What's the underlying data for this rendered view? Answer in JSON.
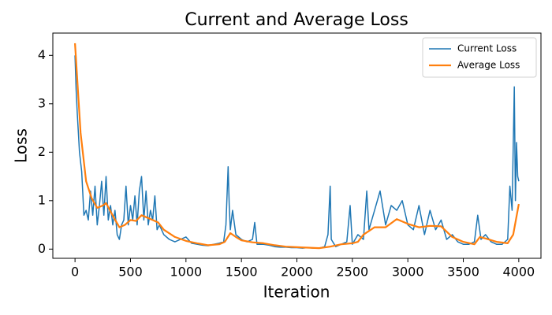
{
  "chart_data": {
    "type": "line",
    "title": "Current and Average Loss",
    "x_label": "Iteration",
    "y_label": "Loss",
    "xlim": [
      -200,
      4200
    ],
    "xticks": [
      0,
      500,
      1000,
      1500,
      2000,
      2500,
      3000,
      3500,
      4000
    ],
    "ylim": [
      -0.19,
      4.46
    ],
    "yticks": [
      0,
      1,
      2,
      3,
      4
    ],
    "grid": false,
    "legend": "upper right",
    "series": [
      {
        "name": "Current Loss",
        "color": "#1f77b4",
        "width": 1.5,
        "x": [
          0,
          10,
          20,
          40,
          60,
          80,
          100,
          120,
          140,
          160,
          180,
          200,
          220,
          240,
          260,
          280,
          300,
          320,
          340,
          360,
          380,
          400,
          420,
          440,
          460,
          480,
          500,
          520,
          540,
          560,
          580,
          600,
          620,
          640,
          660,
          680,
          700,
          720,
          740,
          760,
          800,
          850,
          900,
          950,
          1000,
          1050,
          1100,
          1150,
          1200,
          1250,
          1300,
          1340,
          1360,
          1380,
          1390,
          1400,
          1420,
          1450,
          1500,
          1550,
          1600,
          1620,
          1640,
          1700,
          1750,
          1800,
          1850,
          1900,
          1950,
          2000,
          2050,
          2100,
          2150,
          2200,
          2250,
          2280,
          2300,
          2310,
          2350,
          2400,
          2450,
          2480,
          2500,
          2550,
          2600,
          2630,
          2650,
          2700,
          2750,
          2800,
          2850,
          2900,
          2950,
          3000,
          3050,
          3100,
          3150,
          3200,
          3250,
          3300,
          3350,
          3400,
          3450,
          3500,
          3550,
          3600,
          3630,
          3660,
          3700,
          3750,
          3800,
          3850,
          3900,
          3920,
          3940,
          3960,
          3970,
          3980,
          3990,
          4000
        ],
        "values": [
          4.0,
          3.3,
          2.8,
          2.0,
          1.6,
          0.7,
          0.8,
          0.6,
          1.2,
          0.7,
          1.3,
          0.5,
          0.9,
          1.4,
          0.7,
          1.5,
          0.6,
          0.9,
          0.5,
          0.8,
          0.3,
          0.2,
          0.5,
          0.6,
          1.3,
          0.5,
          0.9,
          0.6,
          1.1,
          0.5,
          1.2,
          1.5,
          0.6,
          1.2,
          0.5,
          0.8,
          0.6,
          1.1,
          0.4,
          0.5,
          0.3,
          0.2,
          0.15,
          0.2,
          0.25,
          0.12,
          0.1,
          0.08,
          0.07,
          0.1,
          0.12,
          0.15,
          0.5,
          1.7,
          0.9,
          0.4,
          0.8,
          0.3,
          0.2,
          0.15,
          0.2,
          0.55,
          0.1,
          0.1,
          0.08,
          0.05,
          0.04,
          0.04,
          0.03,
          0.03,
          0.02,
          0.03,
          0.02,
          0.02,
          0.05,
          0.3,
          1.3,
          0.2,
          0.05,
          0.1,
          0.15,
          0.9,
          0.1,
          0.3,
          0.2,
          1.2,
          0.4,
          0.8,
          1.2,
          0.5,
          0.9,
          0.8,
          1.0,
          0.5,
          0.4,
          0.9,
          0.3,
          0.8,
          0.4,
          0.6,
          0.2,
          0.3,
          0.15,
          0.1,
          0.1,
          0.15,
          0.7,
          0.2,
          0.3,
          0.15,
          0.1,
          0.1,
          0.2,
          1.3,
          0.8,
          3.35,
          1.0,
          2.2,
          1.5,
          1.4
        ]
      },
      {
        "name": "Average Loss",
        "color": "#ff7f0e",
        "width": 2.2,
        "x": [
          0,
          50,
          100,
          150,
          200,
          250,
          280,
          350,
          400,
          450,
          500,
          550,
          600,
          650,
          700,
          750,
          800,
          900,
          1000,
          1100,
          1200,
          1300,
          1350,
          1400,
          1450,
          1500,
          1600,
          1700,
          1800,
          1900,
          2000,
          2100,
          2200,
          2300,
          2400,
          2500,
          2550,
          2600,
          2700,
          2800,
          2900,
          3000,
          3100,
          3200,
          3300,
          3400,
          3500,
          3600,
          3650,
          3700,
          3800,
          3900,
          3950,
          4000
        ],
        "values": [
          4.25,
          2.4,
          1.4,
          1.05,
          0.85,
          0.9,
          0.95,
          0.65,
          0.45,
          0.5,
          0.6,
          0.58,
          0.7,
          0.65,
          0.6,
          0.55,
          0.4,
          0.25,
          0.17,
          0.12,
          0.08,
          0.1,
          0.15,
          0.33,
          0.25,
          0.18,
          0.14,
          0.12,
          0.08,
          0.05,
          0.04,
          0.03,
          0.02,
          0.05,
          0.1,
          0.12,
          0.15,
          0.3,
          0.45,
          0.45,
          0.62,
          0.52,
          0.45,
          0.48,
          0.47,
          0.25,
          0.15,
          0.1,
          0.25,
          0.22,
          0.15,
          0.12,
          0.3,
          0.93
        ]
      }
    ]
  }
}
